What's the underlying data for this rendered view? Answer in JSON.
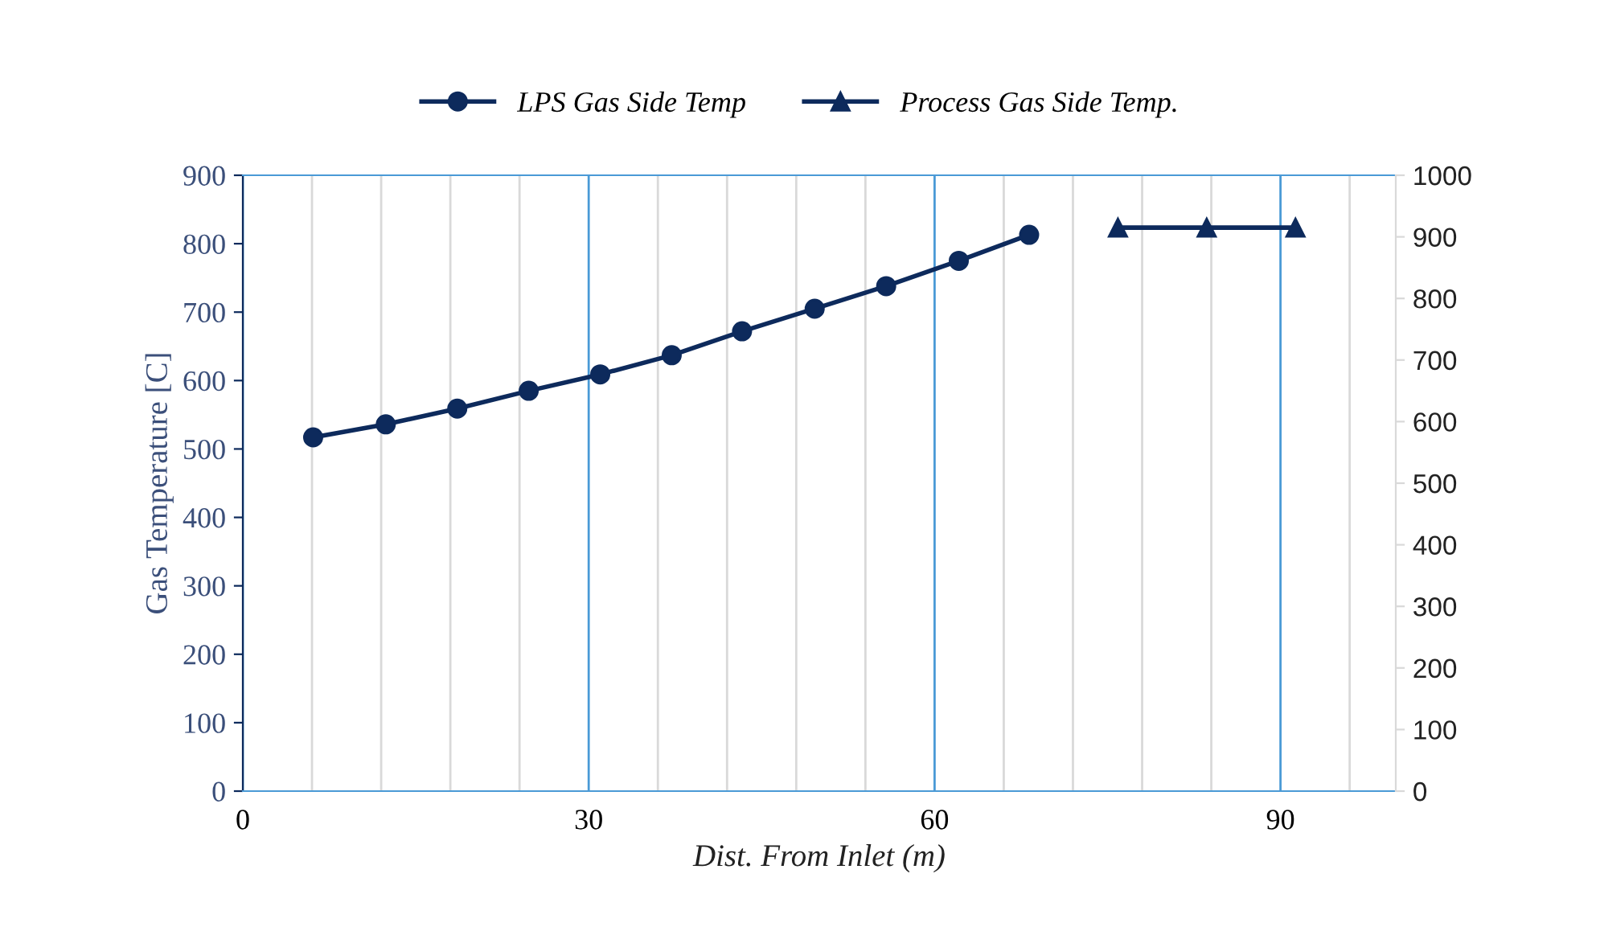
{
  "chart_data": {
    "type": "line",
    "xlabel": "Dist. From Inlet (m)",
    "ylabel": "Gas Temperature [C]",
    "xlim": [
      0,
      100
    ],
    "xticks": [
      0,
      {
        "value": 6,
        "label": null
      },
      {
        "value": 12,
        "label": null
      },
      {
        "value": 18,
        "label": null
      },
      {
        "value": 24,
        "label": null
      },
      30,
      {
        "value": 36,
        "label": null
      },
      {
        "value": 42,
        "label": null
      },
      {
        "value": 48,
        "label": null
      },
      {
        "value": 54,
        "label": null
      },
      60,
      {
        "value": 66,
        "label": null
      },
      {
        "value": 72,
        "label": null
      },
      {
        "value": 78,
        "label": null
      },
      {
        "value": 84,
        "label": null
      },
      90,
      {
        "value": 96,
        "label": null
      }
    ],
    "ylim": [
      0,
      900
    ],
    "yticks": [
      0,
      100,
      200,
      300,
      400,
      500,
      600,
      700,
      800,
      900
    ],
    "y2lim": [
      0,
      1000
    ],
    "y2ticks": [
      0,
      100,
      200,
      300,
      400,
      500,
      600,
      700,
      800,
      900,
      1000
    ],
    "grid": "x",
    "legend": "top",
    "line_style": "solid",
    "series": [
      {
        "name": "LPS Gas Side Temp",
        "color": "#0d2a5c",
        "marker": "circle",
        "x": [
          6.1,
          12.4,
          18.6,
          24.8,
          31.0,
          37.2,
          43.3,
          49.6,
          55.8,
          62.1,
          68.2
        ],
        "values": [
          517,
          536,
          559,
          585,
          609,
          637,
          672,
          705,
          738,
          775,
          813
        ]
      },
      {
        "name": "Process Gas Side Temp.",
        "color": "#0d2a5c",
        "marker": "triangle",
        "axis": "y2",
        "x": [
          75.9,
          83.6,
          91.3
        ],
        "values": [
          915,
          915,
          915
        ]
      }
    ]
  }
}
